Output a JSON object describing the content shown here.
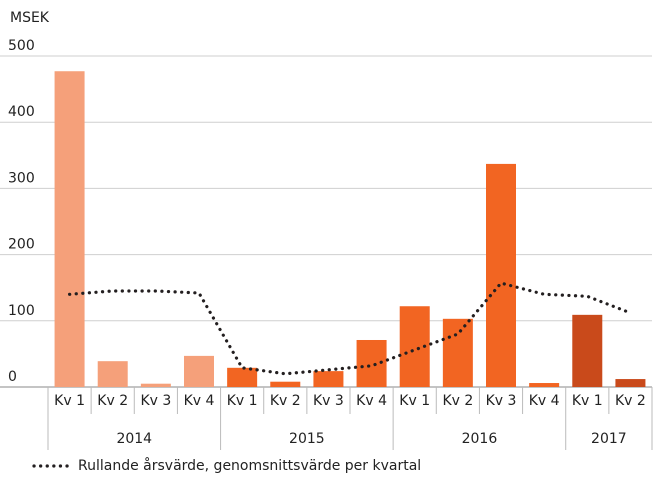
{
  "chart_data": {
    "type": "bar",
    "y_label": "MSEK",
    "categories": [
      "Kv 1",
      "Kv 2",
      "Kv 3",
      "Kv 4",
      "Kv 1",
      "Kv 2",
      "Kv 3",
      "Kv 4",
      "Kv 1",
      "Kv 2",
      "Kv 3",
      "Kv 4",
      "Kv 1",
      "Kv 2"
    ],
    "groups": [
      {
        "label": "2014",
        "span": 4
      },
      {
        "label": "2015",
        "span": 4
      },
      {
        "label": "2016",
        "span": 4
      },
      {
        "label": "2017",
        "span": 2
      }
    ],
    "series": [
      {
        "type": "bar",
        "values": [
          477,
          39,
          5,
          47,
          29,
          8,
          24,
          71,
          122,
          103,
          337,
          6,
          109,
          12
        ],
        "colors": [
          "#f5a07a",
          "#f5a07a",
          "#f5a07a",
          "#f5a07a",
          "#f26522",
          "#f26522",
          "#f26522",
          "#f26522",
          "#f26522",
          "#f26522",
          "#f26522",
          "#f26522",
          "#c94a1b",
          "#c94a1b"
        ]
      },
      {
        "type": "line",
        "name": "Rullande årsvärde, genomsnittsvärde per kvartal",
        "color": "#231f20",
        "dotted": true,
        "values": [
          140,
          145,
          145,
          142,
          29,
          20,
          26,
          32,
          56,
          80,
          157,
          140,
          137,
          112
        ]
      }
    ],
    "ylim": [
      0,
      500
    ],
    "yticks": [
      0,
      100,
      200,
      300,
      400,
      500
    ],
    "grid": true
  }
}
